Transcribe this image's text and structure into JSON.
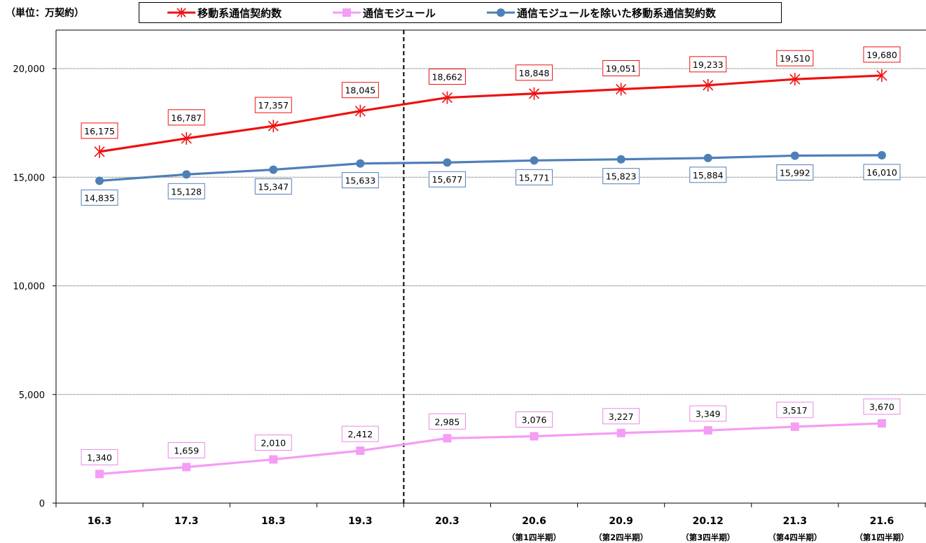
{
  "unit_label": "（単位：万契約）",
  "legend": {
    "item0": "移動系通信契約数",
    "item1": "通信モジュール",
    "item2": "通信モジュールを除いた移動系通信契約数"
  },
  "colors": {
    "mobile_total": "#ee1111",
    "module": "#f59cf5",
    "excluding_module": "#4f7fb8",
    "total_label_border": "#ee1111",
    "module_label_border": "#e888e8",
    "excl_label_border": "#4f7fb8"
  },
  "chart_data": {
    "type": "line",
    "categories": [
      "16.3",
      "17.3",
      "18.3",
      "19.3",
      "20.3",
      "20.6",
      "20.9",
      "20.12",
      "21.3",
      "21.6"
    ],
    "category_sublabels": [
      "",
      "",
      "",
      "",
      "",
      "（第1四半期）",
      "（第2四半期）",
      "（第3四半期）",
      "（第4四半期）",
      "（第1四半期）"
    ],
    "series": [
      {
        "name": "移動系通信契約数",
        "marker": "asterisk",
        "values": [
          16175,
          16787,
          17357,
          18045,
          18662,
          18848,
          19051,
          19233,
          19510,
          19680
        ],
        "labels": [
          "16,175",
          "16,787",
          "17,357",
          "18,045",
          "18,662",
          "18,848",
          "19,051",
          "19,233",
          "19,510",
          "19,680"
        ]
      },
      {
        "name": "通信モジュール",
        "marker": "square",
        "values": [
          1340,
          1659,
          2010,
          2412,
          2985,
          3076,
          3227,
          3349,
          3517,
          3670
        ],
        "labels": [
          "1,340",
          "1,659",
          "2,010",
          "2,412",
          "2,985",
          "3,076",
          "3,227",
          "3,349",
          "3,517",
          "3,670"
        ]
      },
      {
        "name": "通信モジュールを除いた移動系通信契約数",
        "marker": "circle",
        "values": [
          14835,
          15128,
          15347,
          15633,
          15677,
          15771,
          15823,
          15884,
          15992,
          16010
        ],
        "labels": [
          "14,835",
          "15,128",
          "15,347",
          "15,633",
          "15,677",
          "15,771",
          "15,823",
          "15,884",
          "15,992",
          "16,010"
        ]
      }
    ],
    "ylim": [
      0,
      20000
    ],
    "y_ticks": [
      0,
      5000,
      10000,
      15000,
      20000
    ],
    "y_tick_labels": [
      "0",
      "5,000",
      "10,000",
      "15,000",
      "20,000"
    ],
    "grid": true,
    "divider_between": [
      "19.3",
      "20.3"
    ],
    "legend_position": "top"
  }
}
